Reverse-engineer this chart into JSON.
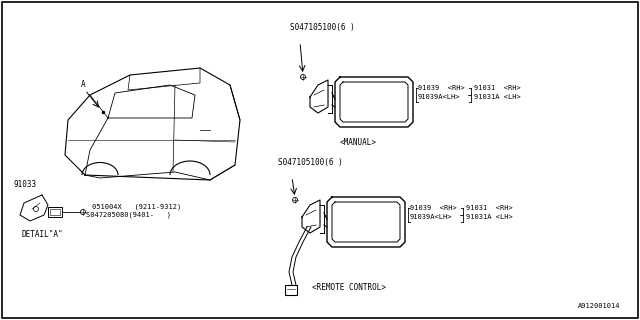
{
  "bg_color": "#ffffff",
  "border_color": "#000000",
  "line_color": "#000000",
  "diagram_id": "A912001014",
  "labels": {
    "detail_a": "DETAIL\"A\"",
    "manual": "<MANUAL>",
    "remote_control": "<REMOTE CONTROL>",
    "label_A": "A",
    "part_91033": "91033",
    "part_051004X": "051004X   (9211-9312)",
    "part_047205080": "S047205080(9401-   )",
    "screw_top": "S047105100(6 )",
    "screw_bottom": "S047105100(6 )",
    "p91039_rh": "91039  <RH>",
    "p91039A_lh": "91039A<LH>",
    "p91031_rh": "91031  <RH>",
    "p91031A_lh": "91031A <LH>"
  }
}
